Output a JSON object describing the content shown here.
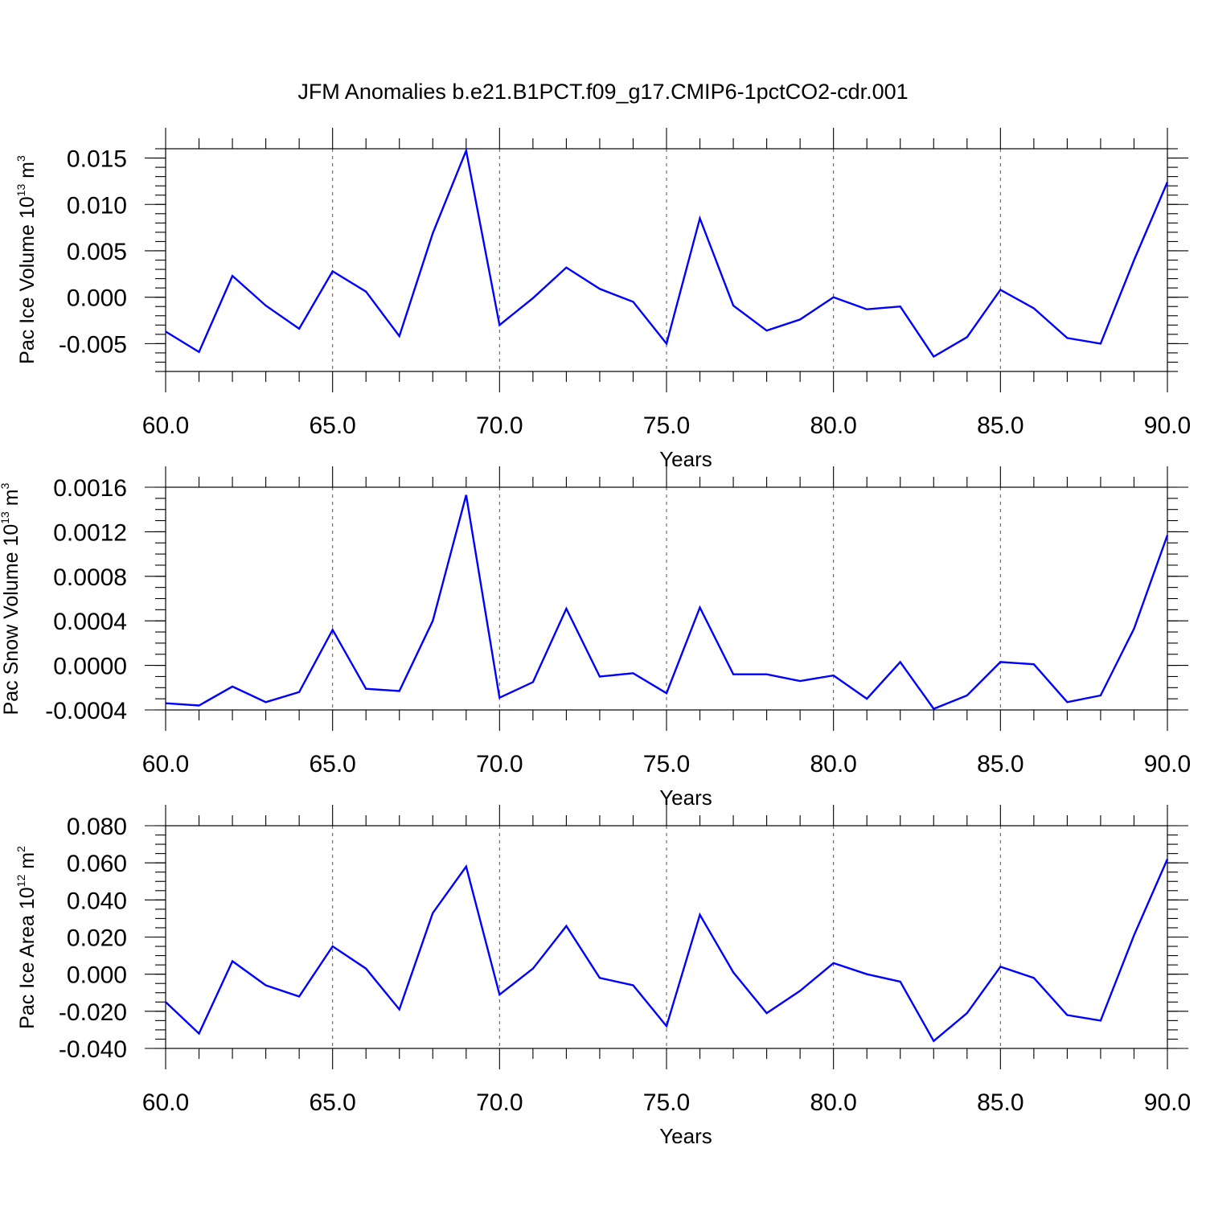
{
  "title": "JFM Anomalies b.e21.B1PCT.f09_g17.CMIP6-1pctCO2-cdr.001",
  "colors": {
    "series": "#0000ff",
    "axis": "#000000",
    "grid": "#555555"
  },
  "chart_data": [
    {
      "type": "line",
      "title": "",
      "xlabel": "Years",
      "ylabel": {
        "prefix": "Pac Ice Volume 10",
        "exp": "13",
        "unit": " m",
        "unit_exp": "3"
      },
      "xlim": [
        60,
        90
      ],
      "ylim": [
        -0.008,
        0.016
      ],
      "x_ticks": [
        60,
        65,
        70,
        75,
        80,
        85,
        90
      ],
      "x_tick_labels": [
        "60.0",
        "65.0",
        "70.0",
        "75.0",
        "80.0",
        "85.0",
        "90.0"
      ],
      "y_ticks": [
        -0.005,
        0.0,
        0.005,
        0.01,
        0.015
      ],
      "y_tick_labels": [
        "-0.005",
        "0.000",
        "0.005",
        "0.010",
        "0.015"
      ],
      "y_minor_step": 0.001,
      "grid": "vertical-dashed",
      "x": [
        60,
        61,
        62,
        63,
        64,
        65,
        66,
        67,
        68,
        69,
        70,
        71,
        72,
        73,
        74,
        75,
        76,
        77,
        78,
        79,
        80,
        81,
        82,
        83,
        84,
        85,
        86,
        87,
        88,
        89,
        90
      ],
      "series": [
        {
          "values": [
            -0.0037,
            -0.0059,
            0.0023,
            -0.0009,
            -0.0034,
            0.0028,
            0.0006,
            -0.0042,
            0.0069,
            0.0158,
            -0.003,
            -0.0001,
            0.0032,
            0.0009,
            -0.0005,
            -0.005,
            0.0085,
            -0.0009,
            -0.0036,
            -0.0024,
            0.0,
            -0.0013,
            -0.001,
            -0.0064,
            -0.0043,
            0.0008,
            -0.0012,
            -0.0044,
            -0.005,
            0.004,
            0.0124
          ]
        }
      ]
    },
    {
      "type": "line",
      "title": "",
      "xlabel": "Years",
      "ylabel": {
        "prefix": "Pac Snow Volume 10",
        "exp": "13",
        "unit": " m",
        "unit_exp": "3"
      },
      "xlim": [
        60,
        90
      ],
      "ylim": [
        -0.0004,
        0.0016
      ],
      "x_ticks": [
        60,
        65,
        70,
        75,
        80,
        85,
        90
      ],
      "x_tick_labels": [
        "60.0",
        "65.0",
        "70.0",
        "75.0",
        "80.0",
        "85.0",
        "90.0"
      ],
      "y_ticks": [
        -0.0004,
        0.0,
        0.0004,
        0.0008,
        0.0012,
        0.0016
      ],
      "y_tick_labels": [
        "-0.0004",
        "0.0000",
        "0.0004",
        "0.0008",
        "0.0012",
        "0.0016"
      ],
      "y_minor_step": 0.0001,
      "grid": "vertical-dashed",
      "x": [
        60,
        61,
        62,
        63,
        64,
        65,
        66,
        67,
        68,
        69,
        70,
        71,
        72,
        73,
        74,
        75,
        76,
        77,
        78,
        79,
        80,
        81,
        82,
        83,
        84,
        85,
        86,
        87,
        88,
        89,
        90
      ],
      "series": [
        {
          "values": [
            -0.00034,
            -0.00036,
            -0.00019,
            -0.00033,
            -0.00024,
            0.00032,
            -0.00021,
            -0.00023,
            0.0004,
            0.00153,
            -0.00029,
            -0.00015,
            0.00051,
            -0.0001,
            -7e-05,
            -0.00025,
            0.00052,
            -8e-05,
            -8e-05,
            -0.00014,
            -9e-05,
            -0.0003,
            3e-05,
            -0.00039,
            -0.00027,
            3e-05,
            1e-05,
            -0.00033,
            -0.00027,
            0.00033,
            0.00117
          ]
        }
      ]
    },
    {
      "type": "line",
      "title": "",
      "xlabel": "Years",
      "ylabel": {
        "prefix": "Pac Ice Area 10",
        "exp": "12",
        "unit": " m",
        "unit_exp": "2"
      },
      "xlim": [
        60,
        90
      ],
      "ylim": [
        -0.04,
        0.08
      ],
      "x_ticks": [
        60,
        65,
        70,
        75,
        80,
        85,
        90
      ],
      "x_tick_labels": [
        "60.0",
        "65.0",
        "70.0",
        "75.0",
        "80.0",
        "85.0",
        "90.0"
      ],
      "y_ticks": [
        -0.04,
        -0.02,
        0.0,
        0.02,
        0.04,
        0.06,
        0.08
      ],
      "y_tick_labels": [
        "-0.040",
        "-0.020",
        "0.000",
        "0.020",
        "0.040",
        "0.060",
        "0.080"
      ],
      "y_minor_step": 0.005,
      "grid": "vertical-dashed",
      "x": [
        60,
        61,
        62,
        63,
        64,
        65,
        66,
        67,
        68,
        69,
        70,
        71,
        72,
        73,
        74,
        75,
        76,
        77,
        78,
        79,
        80,
        81,
        82,
        83,
        84,
        85,
        86,
        87,
        88,
        89,
        90
      ],
      "series": [
        {
          "values": [
            -0.015,
            -0.032,
            0.007,
            -0.006,
            -0.012,
            0.015,
            0.003,
            -0.019,
            0.033,
            0.058,
            -0.011,
            0.003,
            0.026,
            -0.002,
            -0.006,
            -0.028,
            0.032,
            0.001,
            -0.021,
            -0.009,
            0.006,
            0.0,
            -0.004,
            -0.036,
            -0.021,
            0.004,
            -0.002,
            -0.022,
            -0.025,
            0.021,
            0.062
          ]
        }
      ]
    }
  ]
}
